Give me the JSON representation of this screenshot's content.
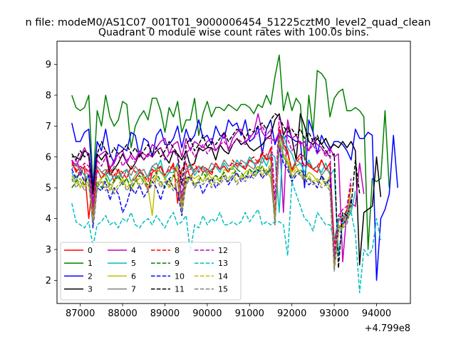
{
  "chart_data": {
    "type": "line",
    "suptitle": "n file: modeM0/AS1C07_001T01_9000006454_51225cztM0_level2_quad_clean",
    "title": "Quadrant 0 module wise count rates with 100.0s bins.",
    "xlabel": "",
    "ylabel": "",
    "x_offset_label": "+4.799e8",
    "xlim": [
      86450,
      94800
    ],
    "ylim": [
      1.25,
      9.75
    ],
    "x_ticks": [
      87000,
      88000,
      89000,
      90000,
      91000,
      92000,
      93000,
      94000
    ],
    "x_tick_labels": [
      "87000",
      "88000",
      "89000",
      "90000",
      "91000",
      "92000",
      "93000",
      "94000"
    ],
    "y_ticks": [
      2,
      3,
      4,
      5,
      6,
      7,
      8,
      9
    ],
    "y_tick_labels": [
      "2",
      "3",
      "4",
      "5",
      "6",
      "7",
      "8",
      "9"
    ],
    "x_start": 86800,
    "x_step": 100,
    "legend": {
      "position": "lower-left",
      "columns": 4
    },
    "series": [
      {
        "name": "0",
        "color": "#ff0000",
        "dash": "solid",
        "values": [
          5.9,
          5.5,
          5.7,
          5.6,
          4.0,
          5.3,
          5.7,
          5.5,
          5.4,
          5.6,
          5.2,
          5.6,
          5.3,
          5.6,
          5.2,
          5.3,
          5.5,
          5.4,
          4.9,
          5.5,
          5.6,
          5.7,
          5.3,
          5.5,
          5.8,
          4.5,
          5.6,
          5.8,
          5.3,
          5.6,
          5.7,
          5.5,
          5.6,
          5.5,
          5.8,
          5.6,
          5.7,
          5.5,
          5.7,
          5.8,
          5.7,
          5.6,
          5.9,
          5.8,
          5.8,
          6.1,
          5.9,
          6.3,
          4.0,
          6.9,
          6.4,
          6.2,
          5.5,
          5.9,
          6.1,
          6.0,
          5.7,
          5.6,
          5.5,
          5.9,
          5.6,
          5.8,
          3.2,
          4.0,
          3.9,
          4.2,
          5.0
        ]
      },
      {
        "name": "1",
        "color": "#008000",
        "dash": "solid",
        "values": [
          8.0,
          7.6,
          7.5,
          7.6,
          8.0,
          5.0,
          7.5,
          7.0,
          8.0,
          7.3,
          7.0,
          7.2,
          7.8,
          7.7,
          6.3,
          7.0,
          7.3,
          7.5,
          7.2,
          7.9,
          7.9,
          7.5,
          6.8,
          7.6,
          7.3,
          7.8,
          6.8,
          7.2,
          7.2,
          7.9,
          6.7,
          7.4,
          7.8,
          7.3,
          7.6,
          7.6,
          7.5,
          7.7,
          7.6,
          7.5,
          7.7,
          7.7,
          7.6,
          7.4,
          7.7,
          7.6,
          8.0,
          7.7,
          8.6,
          9.3,
          7.5,
          8.1,
          7.5,
          7.9,
          7.7,
          5.9,
          8.0,
          6.8,
          8.8,
          8.7,
          8.5,
          7.3,
          7.9,
          8.1,
          8.2,
          7.5,
          7.5,
          7.6,
          7.5,
          7.3,
          3.0,
          5.3,
          5.2,
          5.3,
          7.5,
          5.0
        ]
      },
      {
        "name": "2",
        "color": "#0000ff",
        "dash": "solid",
        "values": [
          7.1,
          6.5,
          6.5,
          6.8,
          6.9,
          5.0,
          6.5,
          6.2,
          6.9,
          6.1,
          5.8,
          6.4,
          6.3,
          6.2,
          6.8,
          6.7,
          6.0,
          6.6,
          6.5,
          6.0,
          6.7,
          6.9,
          6.4,
          6.4,
          6.6,
          7.0,
          6.3,
          6.9,
          6.5,
          6.7,
          7.2,
          6.6,
          6.7,
          6.4,
          7.0,
          6.7,
          6.6,
          7.2,
          7.0,
          7.1,
          6.7,
          7.2,
          6.5,
          6.6,
          7.0,
          6.1,
          6.9,
          7.2,
          6.4,
          6.8,
          6.6,
          6.7,
          6.6,
          6.5,
          6.5,
          5.0,
          7.2,
          6.8,
          6.1,
          6.7,
          6.4,
          6.2,
          6.5,
          6.5,
          6.4,
          6.2,
          5.9,
          6.9,
          6.6,
          6.6,
          6.8,
          6.7,
          2.0,
          4.0,
          4.3,
          4.8,
          6.7,
          5.0
        ]
      },
      {
        "name": "3",
        "color": "#000000",
        "dash": "solid",
        "values": [
          6.0,
          6.0,
          5.9,
          6.2,
          6.1,
          4.9,
          6.1,
          5.9,
          6.1,
          5.4,
          5.6,
          5.8,
          6.1,
          5.8,
          5.6,
          5.8,
          6.1,
          5.9,
          6.1,
          6.0,
          6.2,
          6.3,
          6.0,
          5.8,
          6.2,
          6.1,
          5.9,
          6.2,
          5.7,
          5.8,
          6.3,
          6.2,
          6.3,
          6.3,
          5.9,
          6.4,
          6.2,
          6.1,
          6.4,
          6.6,
          6.4,
          6.5,
          6.3,
          6.2,
          6.3,
          6.4,
          6.6,
          6.7,
          7.2,
          7.4,
          6.7,
          7.0,
          6.6,
          5.9,
          7.4,
          7.0,
          6.5,
          6.4,
          6.6,
          6.4,
          6.6,
          6.3,
          6.4,
          6.3,
          6.5,
          6.3,
          6.5,
          6.2,
          2.5,
          4.2,
          4.3,
          4.4,
          6.0,
          4.7
        ]
      },
      {
        "name": "4",
        "color": "#bf00bf",
        "dash": "solid",
        "values": [
          5.9,
          5.7,
          6.0,
          6.3,
          6.0,
          4.5,
          6.0,
          6.1,
          6.2,
          5.6,
          5.9,
          6.1,
          6.2,
          5.8,
          6.1,
          5.9,
          6.2,
          6.1,
          6.0,
          6.4,
          6.3,
          6.5,
          6.6,
          6.1,
          6.4,
          6.5,
          6.0,
          6.6,
          6.2,
          6.5,
          6.4,
          6.3,
          6.5,
          6.6,
          6.2,
          6.4,
          6.8,
          6.2,
          6.6,
          6.8,
          6.9,
          6.5,
          6.6,
          6.8,
          7.4,
          6.8,
          6.6,
          6.6,
          6.5,
          6.8,
          4.2,
          7.2,
          6.6,
          6.7,
          6.4,
          6.5,
          6.2,
          6.6,
          6.4,
          6.3,
          6.1,
          6.3,
          6.0,
          6.1,
          2.6,
          4.3,
          4.5,
          4.4,
          5.8,
          4.8
        ]
      },
      {
        "name": "5",
        "color": "#00bfbf",
        "dash": "solid",
        "values": [
          5.5,
          5.2,
          5.6,
          5.4,
          5.3,
          4.1,
          5.6,
          5.3,
          5.5,
          5.2,
          5.4,
          5.3,
          5.5,
          5.6,
          5.2,
          5.4,
          5.6,
          5.3,
          5.4,
          5.7,
          5.6,
          5.9,
          5.3,
          5.5,
          5.5,
          5.8,
          4.5,
          5.6,
          5.7,
          5.4,
          5.6,
          5.7,
          5.4,
          5.6,
          5.7,
          5.5,
          5.8,
          5.6,
          5.6,
          5.9,
          5.7,
          5.7,
          6.0,
          5.8,
          5.5,
          6.0,
          5.7,
          6.1,
          6.0,
          4.2,
          6.7,
          6.3,
          6.1,
          5.7,
          5.8,
          5.5,
          5.9,
          5.6,
          5.7,
          5.5,
          5.8,
          5.4,
          5.6,
          2.8,
          3.9,
          4.0,
          4.2,
          4.9
        ]
      },
      {
        "name": "6",
        "color": "#bfbf00",
        "dash": "solid",
        "values": [
          5.2,
          5.4,
          5.0,
          5.3,
          5.1,
          3.9,
          5.1,
          5.3,
          5.4,
          4.9,
          5.2,
          5.4,
          5.2,
          5.3,
          4.9,
          5.2,
          5.3,
          5.4,
          5.0,
          4.1,
          5.6,
          5.5,
          5.3,
          5.0,
          5.4,
          5.7,
          4.5,
          5.1,
          5.4,
          5.3,
          5.4,
          5.2,
          5.5,
          5.3,
          5.4,
          5.2,
          5.6,
          5.5,
          5.7,
          5.4,
          5.3,
          5.5,
          5.6,
          5.5,
          5.7,
          5.4,
          5.6,
          5.3,
          4.0,
          6.5,
          6.1,
          5.9,
          5.5,
          5.7,
          5.4,
          5.3,
          5.5,
          5.4,
          5.2,
          5.3,
          5.1,
          5.4,
          2.5,
          3.8,
          3.7,
          4.1,
          5.0
        ]
      },
      {
        "name": "7",
        "color": "#808080",
        "dash": "solid",
        "values": [
          5.6,
          5.8,
          5.5,
          5.7,
          5.3,
          4.2,
          5.7,
          5.5,
          5.6,
          5.4,
          5.7,
          5.5,
          5.3,
          5.6,
          5.4,
          5.7,
          5.5,
          5.6,
          5.3,
          5.7,
          5.8,
          5.5,
          5.4,
          5.7,
          5.6,
          5.5,
          4.6,
          5.6,
          5.8,
          5.5,
          5.7,
          5.6,
          5.5,
          5.8,
          5.7,
          5.6,
          5.9,
          5.7,
          5.8,
          5.6,
          5.9,
          5.8,
          5.7,
          5.6,
          5.9,
          5.8,
          6.1,
          5.9,
          4.1,
          6.8,
          6.3,
          6.1,
          5.6,
          5.9,
          5.8,
          5.7,
          5.8,
          5.6,
          5.7,
          5.4,
          5.6,
          5.5,
          2.6,
          3.9,
          4.1,
          4.0,
          4.7
        ]
      },
      {
        "name": "8",
        "color": "#ff0000",
        "dash": "dashed",
        "values": [
          5.8,
          5.6,
          5.4,
          5.7,
          5.5,
          4.0,
          5.6,
          5.3,
          5.5,
          5.7,
          5.4,
          5.6,
          5.5,
          5.3,
          5.7,
          5.5,
          5.6,
          5.4,
          5.2,
          5.6,
          5.5,
          5.7,
          5.4,
          5.6,
          5.7,
          5.5,
          4.3,
          5.5,
          5.6,
          5.8,
          5.5,
          5.7,
          5.6,
          5.4,
          5.8,
          5.6,
          5.7,
          5.5,
          5.9,
          5.7,
          5.8,
          5.6,
          5.9,
          6.0,
          5.8,
          6.2,
          5.9,
          6.0,
          4.1,
          7.0,
          6.5,
          6.1,
          5.6,
          5.8,
          6.0,
          5.7,
          5.8,
          5.6,
          5.7,
          5.9,
          5.6,
          5.7,
          2.9,
          4.1,
          4.0,
          4.3,
          5.1
        ]
      },
      {
        "name": "9",
        "color": "#008000",
        "dash": "dashed",
        "values": [
          5.0,
          5.2,
          5.3,
          5.1,
          5.4,
          3.8,
          5.2,
          5.0,
          5.3,
          5.1,
          5.2,
          5.4,
          5.1,
          5.3,
          5.0,
          5.2,
          5.4,
          5.2,
          5.1,
          5.3,
          5.5,
          5.2,
          5.0,
          5.3,
          5.4,
          5.2,
          4.2,
          5.3,
          5.4,
          5.1,
          5.2,
          5.5,
          5.3,
          5.2,
          5.4,
          5.3,
          5.5,
          5.2,
          5.4,
          5.6,
          5.5,
          5.3,
          5.6,
          5.4,
          5.5,
          5.7,
          5.4,
          5.6,
          3.8,
          6.6,
          6.0,
          5.8,
          5.3,
          5.5,
          5.6,
          5.4,
          5.3,
          5.2,
          5.0,
          5.4,
          5.2,
          5.1,
          2.5,
          3.7,
          3.8,
          4.0,
          4.6
        ]
      },
      {
        "name": "10",
        "color": "#0000ff",
        "dash": "dashed",
        "values": [
          5.6,
          5.3,
          5.5,
          5.2,
          5.4,
          3.7,
          5.0,
          4.9,
          5.2,
          4.6,
          5.0,
          4.8,
          4.2,
          4.5,
          5.0,
          4.8,
          5.1,
          4.7,
          4.9,
          5.2,
          5.0,
          4.6,
          5.1,
          5.3,
          5.0,
          4.9,
          4.1,
          5.2,
          5.4,
          5.0,
          5.2,
          4.8,
          5.1,
          5.3,
          5.0,
          5.2,
          5.4,
          5.1,
          5.3,
          5.5,
          5.2,
          5.4,
          5.3,
          5.5,
          5.6,
          5.3,
          5.5,
          5.6,
          3.9,
          6.3,
          5.8,
          5.6,
          5.2,
          5.4,
          5.5,
          5.3,
          5.1,
          5.2,
          5.0,
          5.4,
          5.1,
          5.3,
          2.4,
          3.6,
          3.8,
          4.0,
          4.6
        ]
      },
      {
        "name": "11",
        "color": "#000000",
        "dash": "dashed",
        "values": [
          6.1,
          5.9,
          6.2,
          6.0,
          6.1,
          4.8,
          6.1,
          6.5,
          6.2,
          6.0,
          6.3,
          6.1,
          6.2,
          6.4,
          6.1,
          6.3,
          6.0,
          6.2,
          6.4,
          6.1,
          6.3,
          6.0,
          6.2,
          6.5,
          6.3,
          6.1,
          5.1,
          6.4,
          6.6,
          6.2,
          6.4,
          6.7,
          6.3,
          6.5,
          6.4,
          6.6,
          6.8,
          6.5,
          6.7,
          6.9,
          6.8,
          6.6,
          6.9,
          6.8,
          7.0,
          7.1,
          6.9,
          7.2,
          7.4,
          7.3,
          7.0,
          6.8,
          6.9,
          6.7,
          6.9,
          6.6,
          6.8,
          6.5,
          6.7,
          6.4,
          6.2,
          6.0,
          6.1,
          2.4,
          4.2,
          4.1,
          4.4,
          5.9,
          4.8
        ]
      },
      {
        "name": "12",
        "color": "#bf00bf",
        "dash": "dashed",
        "values": [
          5.7,
          5.9,
          5.6,
          5.8,
          5.7,
          4.4,
          5.9,
          5.7,
          6.0,
          5.6,
          5.8,
          6.1,
          5.7,
          5.9,
          6.0,
          5.8,
          6.2,
          5.9,
          6.1,
          6.0,
          6.2,
          6.3,
          5.9,
          6.1,
          6.2,
          6.0,
          4.7,
          6.1,
          6.3,
          6.0,
          6.2,
          6.4,
          6.1,
          6.3,
          6.2,
          6.4,
          6.5,
          6.3,
          6.4,
          6.6,
          6.5,
          6.4,
          6.7,
          6.6,
          6.8,
          7.0,
          6.7,
          6.9,
          4.6,
          7.3,
          6.8,
          6.6,
          6.2,
          6.4,
          6.5,
          6.3,
          6.2,
          6.4,
          6.1,
          6.3,
          6.0,
          6.2,
          2.7,
          4.1,
          4.3,
          4.4,
          5.3
        ]
      },
      {
        "name": "13",
        "color": "#00bfbf",
        "dash": "dashed",
        "values": [
          4.5,
          3.9,
          3.8,
          3.7,
          3.9,
          3.1,
          3.8,
          3.9,
          4.1,
          3.8,
          3.9,
          3.7,
          4.0,
          3.9,
          4.2,
          3.8,
          3.7,
          3.9,
          4.0,
          3.8,
          4.1,
          3.9,
          3.7,
          4.0,
          4.2,
          3.8,
          3.9,
          4.1,
          2.9,
          3.8,
          3.7,
          4.1,
          3.8,
          4.0,
          3.9,
          4.2,
          3.8,
          3.8,
          3.9,
          3.8,
          3.9,
          4.2,
          3.9,
          4.1,
          4.3,
          3.8,
          3.9,
          3.8,
          3.9,
          3.9,
          3.8,
          2.8,
          5.2,
          4.8,
          4.4,
          4.0,
          3.9,
          3.6,
          4.2,
          4.0,
          3.8,
          3.8,
          3.3,
          4.0,
          4.0,
          4.2,
          4.2,
          3.5,
          1.6,
          3.0,
          2.8,
          3.0,
          4.0,
          3.3
        ]
      },
      {
        "name": "14",
        "color": "#bfbf00",
        "dash": "dashed",
        "values": [
          5.4,
          5.1,
          5.3,
          5.0,
          5.2,
          3.9,
          5.1,
          5.3,
          5.0,
          5.2,
          4.9,
          5.1,
          5.3,
          5.0,
          5.2,
          5.4,
          5.1,
          5.3,
          5.0,
          5.2,
          5.4,
          5.1,
          5.3,
          5.2,
          5.0,
          5.3,
          4.3,
          5.2,
          5.4,
          5.1,
          5.3,
          5.2,
          5.4,
          5.1,
          5.3,
          5.2,
          5.4,
          5.3,
          5.5,
          5.2,
          5.4,
          5.3,
          5.5,
          5.4,
          5.6,
          5.7,
          5.5,
          5.8,
          3.9,
          6.6,
          6.1,
          5.8,
          5.4,
          5.6,
          5.5,
          5.3,
          5.4,
          5.2,
          5.3,
          5.1,
          5.2,
          5.0,
          2.4,
          3.6,
          3.8,
          3.9,
          4.5
        ]
      },
      {
        "name": "15",
        "color": "#808080",
        "dash": "dashed",
        "values": [
          5.3,
          5.0,
          5.2,
          4.9,
          5.1,
          3.8,
          5.0,
          5.2,
          4.9,
          5.1,
          4.8,
          5.0,
          5.2,
          4.9,
          5.1,
          5.3,
          5.0,
          5.2,
          4.9,
          5.1,
          5.3,
          5.0,
          5.2,
          5.1,
          4.9,
          5.2,
          4.2,
          5.1,
          5.3,
          5.0,
          5.2,
          5.1,
          5.3,
          5.0,
          5.2,
          5.1,
          5.3,
          5.2,
          5.4,
          5.1,
          5.3,
          5.2,
          5.4,
          5.3,
          5.5,
          5.6,
          5.4,
          5.7,
          3.8,
          6.5,
          6.0,
          5.7,
          5.3,
          5.5,
          5.4,
          5.2,
          5.3,
          5.1,
          5.2,
          5.0,
          5.1,
          4.9,
          2.3,
          3.5,
          3.7,
          3.8,
          4.4
        ]
      }
    ]
  }
}
